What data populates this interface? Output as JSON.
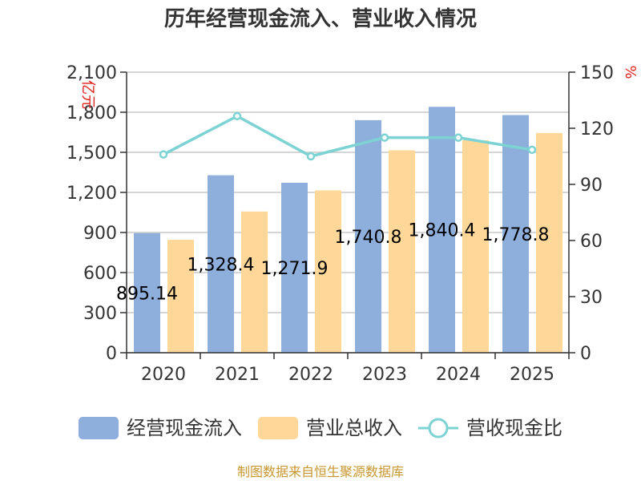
{
  "chart_data": {
    "type": "bar",
    "title": "历年经营现金流入、营业收入情况",
    "categories": [
      "2020",
      "2021",
      "2022",
      "2023",
      "2024",
      "2025"
    ],
    "series": [
      {
        "name": "经营现金流入",
        "type": "bar",
        "axis": "left",
        "color": "#8eaedb",
        "values": [
          895.14,
          1328.4,
          1271.9,
          1740.8,
          1840.4,
          1778.8
        ],
        "labels": [
          "895.14",
          "1,328.4",
          "1,271.9",
          "1,740.8",
          "1,840.4",
          "1,778.8"
        ]
      },
      {
        "name": "营业总收入",
        "type": "bar",
        "axis": "left",
        "color": "#ffd899",
        "values": [
          845,
          1057,
          1215,
          1515,
          1590,
          1645
        ]
      },
      {
        "name": "营收现金比",
        "type": "line",
        "axis": "right",
        "color": "#7dd3d3",
        "values": [
          106,
          126.5,
          105,
          115,
          115,
          108.5
        ]
      }
    ],
    "y_left": {
      "unit": "亿元",
      "range": [
        0,
        2100
      ],
      "ticks": [
        0,
        300,
        600,
        900,
        1200,
        1500,
        1800,
        2100
      ],
      "tick_labels": [
        "0",
        "300",
        "600",
        "900",
        "1,200",
        "1,500",
        "1,800",
        "2,100"
      ]
    },
    "y_right": {
      "unit": "%",
      "range": [
        0,
        150
      ],
      "ticks": [
        0,
        30,
        60,
        90,
        120,
        150
      ],
      "tick_labels": [
        "0",
        "30",
        "60",
        "90",
        "120",
        "150"
      ]
    },
    "legend": [
      "经营现金流入",
      "营业总收入",
      "营收现金比"
    ],
    "grid": true,
    "legend_position": "bottom",
    "source": "制图数据来自恒生聚源数据库"
  }
}
